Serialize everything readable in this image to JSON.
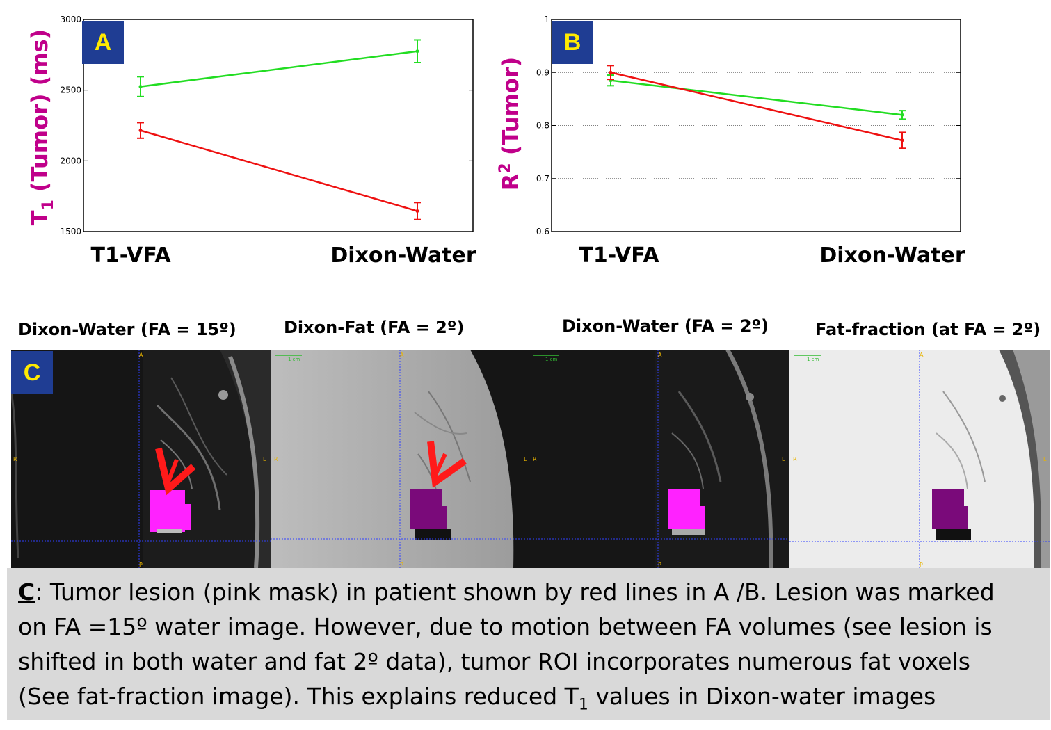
{
  "chart_data": [
    {
      "type": "line",
      "panel_label": "A",
      "ylabel_main": "T",
      "ylabel_sub": "1",
      "ylabel_rest": " (Tumor) (ms)",
      "categories": [
        "T1-VFA",
        "Dixon-Water"
      ],
      "ylim": [
        1500,
        3000
      ],
      "yticks": [
        1500,
        2000,
        2500,
        3000
      ],
      "grid": false,
      "series": [
        {
          "name": "green",
          "color": "#22dd22",
          "values": [
            2525,
            2775
          ],
          "errors": [
            70,
            80
          ]
        },
        {
          "name": "red",
          "color": "#ee1111",
          "values": [
            2215,
            1645
          ],
          "errors": [
            55,
            60
          ]
        }
      ]
    },
    {
      "type": "line",
      "panel_label": "B",
      "ylabel_main": "R",
      "ylabel_sup": "2",
      "ylabel_rest": " (Tumor)",
      "categories": [
        "T1-VFA",
        "Dixon-Water"
      ],
      "ylim": [
        0.6,
        1
      ],
      "yticks": [
        "0.6",
        "0.7",
        "0.8",
        "0.9",
        "1"
      ],
      "grid": true,
      "series": [
        {
          "name": "green",
          "color": "#22dd22",
          "values": [
            0.885,
            0.82
          ],
          "errors": [
            0.01,
            0.008
          ]
        },
        {
          "name": "red",
          "color": "#ee1111",
          "values": [
            0.9,
            0.772
          ],
          "errors": [
            0.013,
            0.015
          ]
        }
      ]
    }
  ],
  "panel_c": {
    "label": "C",
    "titles": [
      "Dixon-Water (FA = 15º)",
      "Dixon-Fat (FA = 2º)",
      "Dixon-Water (FA = 2º)",
      "Fat-fraction (at FA = 2º)"
    ],
    "orientation": {
      "top": "A",
      "bottom": "P",
      "left": "R",
      "right": "L"
    },
    "scale_label": "1 cm"
  },
  "caption": {
    "lead": "C",
    "line1": ": Tumor lesion (pink mask) in patient shown by red lines in A /B. Lesion was marked",
    "line2": "on FA =15º water image. However, due to motion between FA volumes (see lesion is",
    "line3": "shifted in both water and fat 2º data), tumor ROI incorporates numerous fat voxels",
    "line4a": "(See fat-fraction image). This explains reduced T",
    "line4sub": "1",
    "line4b": " values in Dixon-water images"
  },
  "colors": {
    "badge": "#1f3d93",
    "badge_text": "#ffea00",
    "ylabel": "#c0008a",
    "mask": "#ff22ff",
    "mask_dark": "#7a0a7a"
  }
}
